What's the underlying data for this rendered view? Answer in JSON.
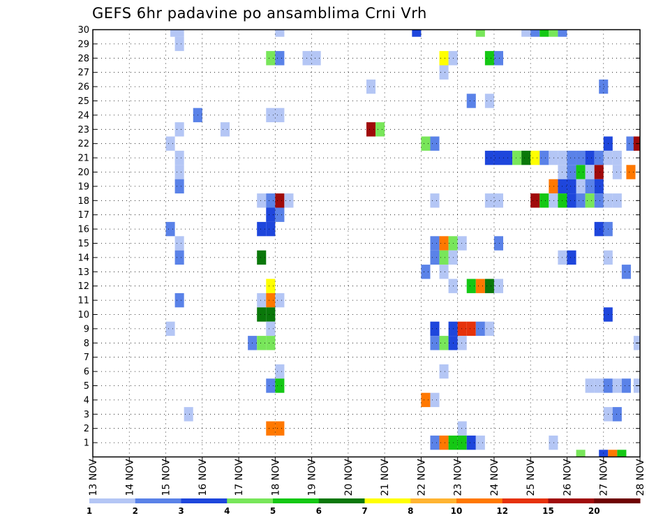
{
  "chart_data": {
    "type": "heatmap",
    "title": "GEFS 6hr padavine po ansamblima Crni Vrh",
    "x_tick_labels": [
      "13 NOV",
      "14 NOV",
      "15 NOV",
      "16 NOV",
      "17 NOV",
      "18 NOV",
      "19 NOV",
      "20 NOV",
      "21 NOV",
      "22 NOV",
      "23 NOV",
      "24 NOV",
      "25 NOV",
      "26 NOV",
      "27 NOV",
      "28 NOV"
    ],
    "y_tick_labels": [
      "1",
      "2",
      "3",
      "4",
      "5",
      "6",
      "7",
      "8",
      "9",
      "10",
      "11",
      "12",
      "13",
      "14",
      "15",
      "16",
      "17",
      "18",
      "19",
      "20",
      "21",
      "22",
      "23",
      "24",
      "25",
      "26",
      "27",
      "28",
      "29",
      "30"
    ],
    "x_range": [
      "13 NOV",
      "28 NOV"
    ],
    "y_range": [
      0,
      30
    ],
    "time_step_hours": 6,
    "grid": true,
    "colorbar": {
      "position": "bottom",
      "tick_labels": [
        "1",
        "2",
        "3",
        "4",
        "5",
        "6",
        "7",
        "8",
        "10",
        "12",
        "15",
        "20"
      ],
      "colors": [
        "#b4c6f5",
        "#5a82e8",
        "#1e46dc",
        "#78e65a",
        "#14c814",
        "#0a780a",
        "#ffff00",
        "#ffb432",
        "#ff7800",
        "#e6320a",
        "#a00a0a",
        "#6e0000"
      ]
    },
    "cells": [
      {
        "member": 30,
        "day": 15.25,
        "class": 1
      },
      {
        "member": 30,
        "day": 15.375,
        "class": 1
      },
      {
        "member": 30,
        "day": 18.125,
        "class": 1
      },
      {
        "member": 30,
        "day": 21.875,
        "class": 3
      },
      {
        "member": 30,
        "day": 23.625,
        "class": 4
      },
      {
        "member": 30,
        "day": 24.875,
        "class": 1
      },
      {
        "member": 30,
        "day": 25.125,
        "class": 2
      },
      {
        "member": 30,
        "day": 25.375,
        "class": 5
      },
      {
        "member": 30,
        "day": 25.625,
        "class": 4
      },
      {
        "member": 30,
        "day": 25.875,
        "class": 2
      },
      {
        "member": 29,
        "day": 15.375,
        "class": 1
      },
      {
        "member": 28,
        "day": 17.875,
        "class": 4
      },
      {
        "member": 28,
        "day": 18.125,
        "class": 2
      },
      {
        "member": 28,
        "day": 18.875,
        "class": 1
      },
      {
        "member": 28,
        "day": 19.125,
        "class": 1
      },
      {
        "member": 28,
        "day": 22.625,
        "class": 7
      },
      {
        "member": 28,
        "day": 22.875,
        "class": 1
      },
      {
        "member": 28,
        "day": 23.875,
        "class": 5
      },
      {
        "member": 28,
        "day": 24.125,
        "class": 2
      },
      {
        "member": 27,
        "day": 22.625,
        "class": 1
      },
      {
        "member": 26,
        "day": 20.625,
        "class": 1
      },
      {
        "member": 26,
        "day": 27.0,
        "class": 2
      },
      {
        "member": 25,
        "day": 23.375,
        "class": 2
      },
      {
        "member": 25,
        "day": 23.875,
        "class": 1
      },
      {
        "member": 24,
        "day": 15.875,
        "class": 2
      },
      {
        "member": 24,
        "day": 17.875,
        "class": 1
      },
      {
        "member": 24,
        "day": 18.125,
        "class": 1
      },
      {
        "member": 23,
        "day": 15.375,
        "class": 1
      },
      {
        "member": 23,
        "day": 16.625,
        "class": 1
      },
      {
        "member": 23,
        "day": 20.625,
        "class": 11
      },
      {
        "member": 23,
        "day": 20.875,
        "class": 4
      },
      {
        "member": 22,
        "day": 15.125,
        "class": 1
      },
      {
        "member": 22,
        "day": 22.125,
        "class": 4
      },
      {
        "member": 22,
        "day": 22.375,
        "class": 2
      },
      {
        "member": 22,
        "day": 27.125,
        "class": 3
      },
      {
        "member": 22,
        "day": 27.75,
        "class": 2
      },
      {
        "member": 22,
        "day": 27.95,
        "class": 11
      },
      {
        "member": 21,
        "day": 15.375,
        "class": 1
      },
      {
        "member": 21,
        "day": 23.875,
        "class": 3
      },
      {
        "member": 21,
        "day": 24.125,
        "class": 3
      },
      {
        "member": 21,
        "day": 24.375,
        "class": 3
      },
      {
        "member": 21,
        "day": 24.625,
        "class": 4
      },
      {
        "member": 21,
        "day": 24.875,
        "class": 6
      },
      {
        "member": 21,
        "day": 25.125,
        "class": 7
      },
      {
        "member": 21,
        "day": 25.375,
        "class": 2
      },
      {
        "member": 21,
        "day": 25.625,
        "class": 1
      },
      {
        "member": 21,
        "day": 25.875,
        "class": 1
      },
      {
        "member": 21,
        "day": 26.125,
        "class": 2
      },
      {
        "member": 21,
        "day": 26.375,
        "class": 2
      },
      {
        "member": 21,
        "day": 26.625,
        "class": 3
      },
      {
        "member": 21,
        "day": 26.875,
        "class": 2
      },
      {
        "member": 21,
        "day": 27.125,
        "class": 1
      },
      {
        "member": 21,
        "day": 27.375,
        "class": 1
      },
      {
        "member": 20,
        "day": 15.375,
        "class": 1
      },
      {
        "member": 20,
        "day": 25.875,
        "class": 1
      },
      {
        "member": 20,
        "day": 26.125,
        "class": 2
      },
      {
        "member": 20,
        "day": 26.375,
        "class": 5
      },
      {
        "member": 20,
        "day": 26.625,
        "class": 1
      },
      {
        "member": 20,
        "day": 26.875,
        "class": 11
      },
      {
        "member": 20,
        "day": 27.375,
        "class": 1
      },
      {
        "member": 20,
        "day": 27.75,
        "class": 9
      },
      {
        "member": 19,
        "day": 15.375,
        "class": 2
      },
      {
        "member": 19,
        "day": 25.625,
        "class": 9
      },
      {
        "member": 19,
        "day": 25.875,
        "class": 3
      },
      {
        "member": 19,
        "day": 26.125,
        "class": 3
      },
      {
        "member": 19,
        "day": 26.375,
        "class": 1
      },
      {
        "member": 19,
        "day": 26.625,
        "class": 2
      },
      {
        "member": 19,
        "day": 26.875,
        "class": 3
      },
      {
        "member": 18,
        "day": 17.625,
        "class": 1
      },
      {
        "member": 18,
        "day": 17.875,
        "class": 2
      },
      {
        "member": 18,
        "day": 18.125,
        "class": 11
      },
      {
        "member": 18,
        "day": 18.375,
        "class": 1
      },
      {
        "member": 18,
        "day": 22.375,
        "class": 1
      },
      {
        "member": 18,
        "day": 23.875,
        "class": 1
      },
      {
        "member": 18,
        "day": 24.125,
        "class": 1
      },
      {
        "member": 18,
        "day": 25.125,
        "class": 11
      },
      {
        "member": 18,
        "day": 25.375,
        "class": 5
      },
      {
        "member": 18,
        "day": 25.625,
        "class": 1
      },
      {
        "member": 18,
        "day": 25.875,
        "class": 5
      },
      {
        "member": 18,
        "day": 26.125,
        "class": 3
      },
      {
        "member": 18,
        "day": 26.375,
        "class": 2
      },
      {
        "member": 18,
        "day": 26.625,
        "class": 4
      },
      {
        "member": 18,
        "day": 26.875,
        "class": 2
      },
      {
        "member": 18,
        "day": 27.125,
        "class": 1
      },
      {
        "member": 18,
        "day": 27.375,
        "class": 1
      },
      {
        "member": 17,
        "day": 17.875,
        "class": 3
      },
      {
        "member": 17,
        "day": 18.125,
        "class": 2
      },
      {
        "member": 16,
        "day": 15.125,
        "class": 2
      },
      {
        "member": 16,
        "day": 17.625,
        "class": 3
      },
      {
        "member": 16,
        "day": 17.875,
        "class": 3
      },
      {
        "member": 16,
        "day": 26.875,
        "class": 3
      },
      {
        "member": 16,
        "day": 27.125,
        "class": 2
      },
      {
        "member": 15,
        "day": 15.375,
        "class": 1
      },
      {
        "member": 15,
        "day": 22.375,
        "class": 2
      },
      {
        "member": 15,
        "day": 22.625,
        "class": 9
      },
      {
        "member": 15,
        "day": 22.875,
        "class": 4
      },
      {
        "member": 15,
        "day": 23.125,
        "class": 1
      },
      {
        "member": 15,
        "day": 24.125,
        "class": 2
      },
      {
        "member": 14,
        "day": 15.375,
        "class": 2
      },
      {
        "member": 14,
        "day": 17.625,
        "class": 6
      },
      {
        "member": 14,
        "day": 22.375,
        "class": 2
      },
      {
        "member": 14,
        "day": 22.625,
        "class": 4
      },
      {
        "member": 14,
        "day": 22.875,
        "class": 1
      },
      {
        "member": 14,
        "day": 25.875,
        "class": 1
      },
      {
        "member": 14,
        "day": 26.125,
        "class": 3
      },
      {
        "member": 14,
        "day": 27.125,
        "class": 1
      },
      {
        "member": 13,
        "day": 22.125,
        "class": 2
      },
      {
        "member": 13,
        "day": 22.625,
        "class": 1
      },
      {
        "member": 13,
        "day": 27.625,
        "class": 2
      },
      {
        "member": 12,
        "day": 17.875,
        "class": 7
      },
      {
        "member": 12,
        "day": 22.875,
        "class": 1
      },
      {
        "member": 12,
        "day": 23.375,
        "class": 5
      },
      {
        "member": 12,
        "day": 23.625,
        "class": 9
      },
      {
        "member": 12,
        "day": 23.875,
        "class": 6
      },
      {
        "member": 12,
        "day": 24.125,
        "class": 1
      },
      {
        "member": 11,
        "day": 15.375,
        "class": 2
      },
      {
        "member": 11,
        "day": 17.625,
        "class": 1
      },
      {
        "member": 11,
        "day": 17.875,
        "class": 9
      },
      {
        "member": 11,
        "day": 18.125,
        "class": 1
      },
      {
        "member": 10,
        "day": 17.625,
        "class": 6
      },
      {
        "member": 10,
        "day": 17.875,
        "class": 6
      },
      {
        "member": 10,
        "day": 27.125,
        "class": 3
      },
      {
        "member": 9,
        "day": 15.125,
        "class": 1
      },
      {
        "member": 9,
        "day": 17.875,
        "class": 1
      },
      {
        "member": 9,
        "day": 22.375,
        "class": 3
      },
      {
        "member": 9,
        "day": 22.875,
        "class": 3
      },
      {
        "member": 9,
        "day": 23.125,
        "class": 10
      },
      {
        "member": 9,
        "day": 23.375,
        "class": 10
      },
      {
        "member": 9,
        "day": 23.625,
        "class": 2
      },
      {
        "member": 9,
        "day": 23.875,
        "class": 1
      },
      {
        "member": 8,
        "day": 17.375,
        "class": 2
      },
      {
        "member": 8,
        "day": 17.625,
        "class": 4
      },
      {
        "member": 8,
        "day": 17.875,
        "class": 4
      },
      {
        "member": 8,
        "day": 22.375,
        "class": 2
      },
      {
        "member": 8,
        "day": 22.625,
        "class": 4
      },
      {
        "member": 8,
        "day": 22.875,
        "class": 3
      },
      {
        "member": 8,
        "day": 23.125,
        "class": 1
      },
      {
        "member": 8,
        "day": 27.95,
        "class": 1
      },
      {
        "member": 6,
        "day": 18.125,
        "class": 1
      },
      {
        "member": 6,
        "day": 22.625,
        "class": 1
      },
      {
        "member": 5,
        "day": 17.875,
        "class": 2
      },
      {
        "member": 5,
        "day": 18.125,
        "class": 5
      },
      {
        "member": 5,
        "day": 26.625,
        "class": 1
      },
      {
        "member": 5,
        "day": 26.875,
        "class": 1
      },
      {
        "member": 5,
        "day": 27.125,
        "class": 2
      },
      {
        "member": 5,
        "day": 27.375,
        "class": 1
      },
      {
        "member": 5,
        "day": 27.625,
        "class": 2
      },
      {
        "member": 5,
        "day": 27.95,
        "class": 1
      },
      {
        "member": 4,
        "day": 22.125,
        "class": 9
      },
      {
        "member": 4,
        "day": 22.375,
        "class": 1
      },
      {
        "member": 3,
        "day": 15.625,
        "class": 1
      },
      {
        "member": 3,
        "day": 27.125,
        "class": 1
      },
      {
        "member": 3,
        "day": 27.375,
        "class": 2
      },
      {
        "member": 2,
        "day": 17.875,
        "class": 9
      },
      {
        "member": 2,
        "day": 18.125,
        "class": 9
      },
      {
        "member": 2,
        "day": 23.125,
        "class": 1
      },
      {
        "member": 1,
        "day": 22.375,
        "class": 2
      },
      {
        "member": 1,
        "day": 22.625,
        "class": 9
      },
      {
        "member": 1,
        "day": 22.875,
        "class": 5
      },
      {
        "member": 1,
        "day": 23.125,
        "class": 5
      },
      {
        "member": 1,
        "day": 23.375,
        "class": 3
      },
      {
        "member": 1,
        "day": 23.625,
        "class": 1
      },
      {
        "member": 1,
        "day": 25.625,
        "class": 1
      },
      {
        "member": 0,
        "day": 26.375,
        "class": 4
      },
      {
        "member": 0,
        "day": 27.0,
        "class": 3
      },
      {
        "member": 0,
        "day": 27.25,
        "class": 9
      },
      {
        "member": 0,
        "day": 27.5,
        "class": 5
      }
    ]
  }
}
